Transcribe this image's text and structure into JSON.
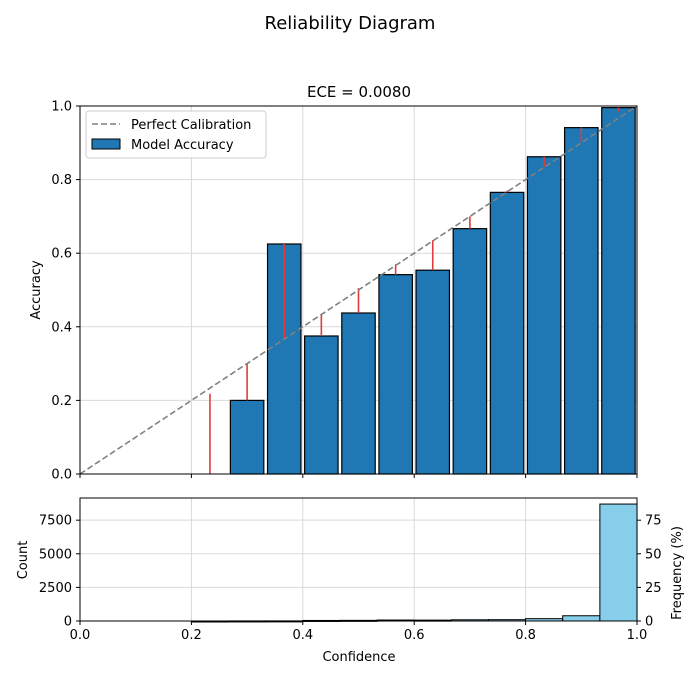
{
  "figure_title": "Reliability Diagram",
  "chart_data": [
    {
      "type": "bar",
      "title": "ECE = 0.0080",
      "xlabel": "",
      "ylabel": "Accuracy",
      "xlim": [
        0,
        1
      ],
      "ylim": [
        0,
        1
      ],
      "x_ticks": [
        "0.0",
        "0.2",
        "0.4",
        "0.6",
        "0.8",
        "1.0"
      ],
      "y_ticks": [
        "0.0",
        "0.2",
        "0.4",
        "0.6",
        "0.8",
        "1.0"
      ],
      "grid": true,
      "legend_position": "top-left",
      "reference_line": {
        "name": "Perfect Calibration",
        "style": "dashed",
        "color": "#808080",
        "from": [
          0,
          0
        ],
        "to": [
          1,
          1
        ]
      },
      "bin_width": 0.0667,
      "bins": [
        {
          "center": 0.2333,
          "accuracy": 0.0,
          "confidence": 0.218
        },
        {
          "center": 0.3,
          "accuracy": 0.2,
          "confidence": 0.3
        },
        {
          "center": 0.3667,
          "accuracy": 0.625,
          "confidence": 0.37
        },
        {
          "center": 0.4333,
          "accuracy": 0.375,
          "confidence": 0.435
        },
        {
          "center": 0.5,
          "accuracy": 0.4375,
          "confidence": 0.505
        },
        {
          "center": 0.5667,
          "accuracy": 0.5417,
          "confidence": 0.57
        },
        {
          "center": 0.6333,
          "accuracy": 0.5538,
          "confidence": 0.635
        },
        {
          "center": 0.7,
          "accuracy": 0.6667,
          "confidence": 0.7
        },
        {
          "center": 0.7667,
          "accuracy": 0.7653,
          "confidence": 0.77
        },
        {
          "center": 0.8333,
          "accuracy": 0.8621,
          "confidence": 0.835
        },
        {
          "center": 0.9,
          "accuracy": 0.9412,
          "confidence": 0.903
        },
        {
          "center": 0.9667,
          "accuracy": 0.9956,
          "confidence": 0.985
        }
      ],
      "series": [
        {
          "name": "Model Accuracy",
          "color": "#1f77b4"
        }
      ],
      "gap_color": "#e03c3c"
    },
    {
      "type": "bar",
      "xlabel": "Confidence",
      "ylabel": "Count",
      "ylabel_right": "Frequency (%)",
      "xlim": [
        0,
        1
      ],
      "ylim": [
        0,
        9150
      ],
      "y_ticks": [
        "0",
        "2500",
        "5000",
        "7500"
      ],
      "y_tick_values": [
        0,
        2500,
        5000,
        7500
      ],
      "y2_ticks": [
        "0",
        "25",
        "50",
        "75"
      ],
      "y2_tick_values": [
        0,
        25,
        50,
        75
      ],
      "y2lim": [
        0,
        91.5
      ],
      "x_ticks": [
        "0.0",
        "0.2",
        "0.4",
        "0.6",
        "0.8",
        "1.0"
      ],
      "grid": true,
      "bin_width": 0.0667,
      "color": "#87ceeb",
      "bins": [
        {
          "center": 0.2333,
          "count": 1
        },
        {
          "center": 0.3,
          "count": 5
        },
        {
          "center": 0.3667,
          "count": 8
        },
        {
          "center": 0.4333,
          "count": 40
        },
        {
          "center": 0.5,
          "count": 48
        },
        {
          "center": 0.5667,
          "count": 72
        },
        {
          "center": 0.6333,
          "count": 65
        },
        {
          "center": 0.7,
          "count": 90
        },
        {
          "center": 0.7667,
          "count": 98
        },
        {
          "center": 0.8333,
          "count": 174
        },
        {
          "center": 0.9,
          "count": 391
        },
        {
          "center": 0.9667,
          "count": 8700
        }
      ]
    }
  ]
}
